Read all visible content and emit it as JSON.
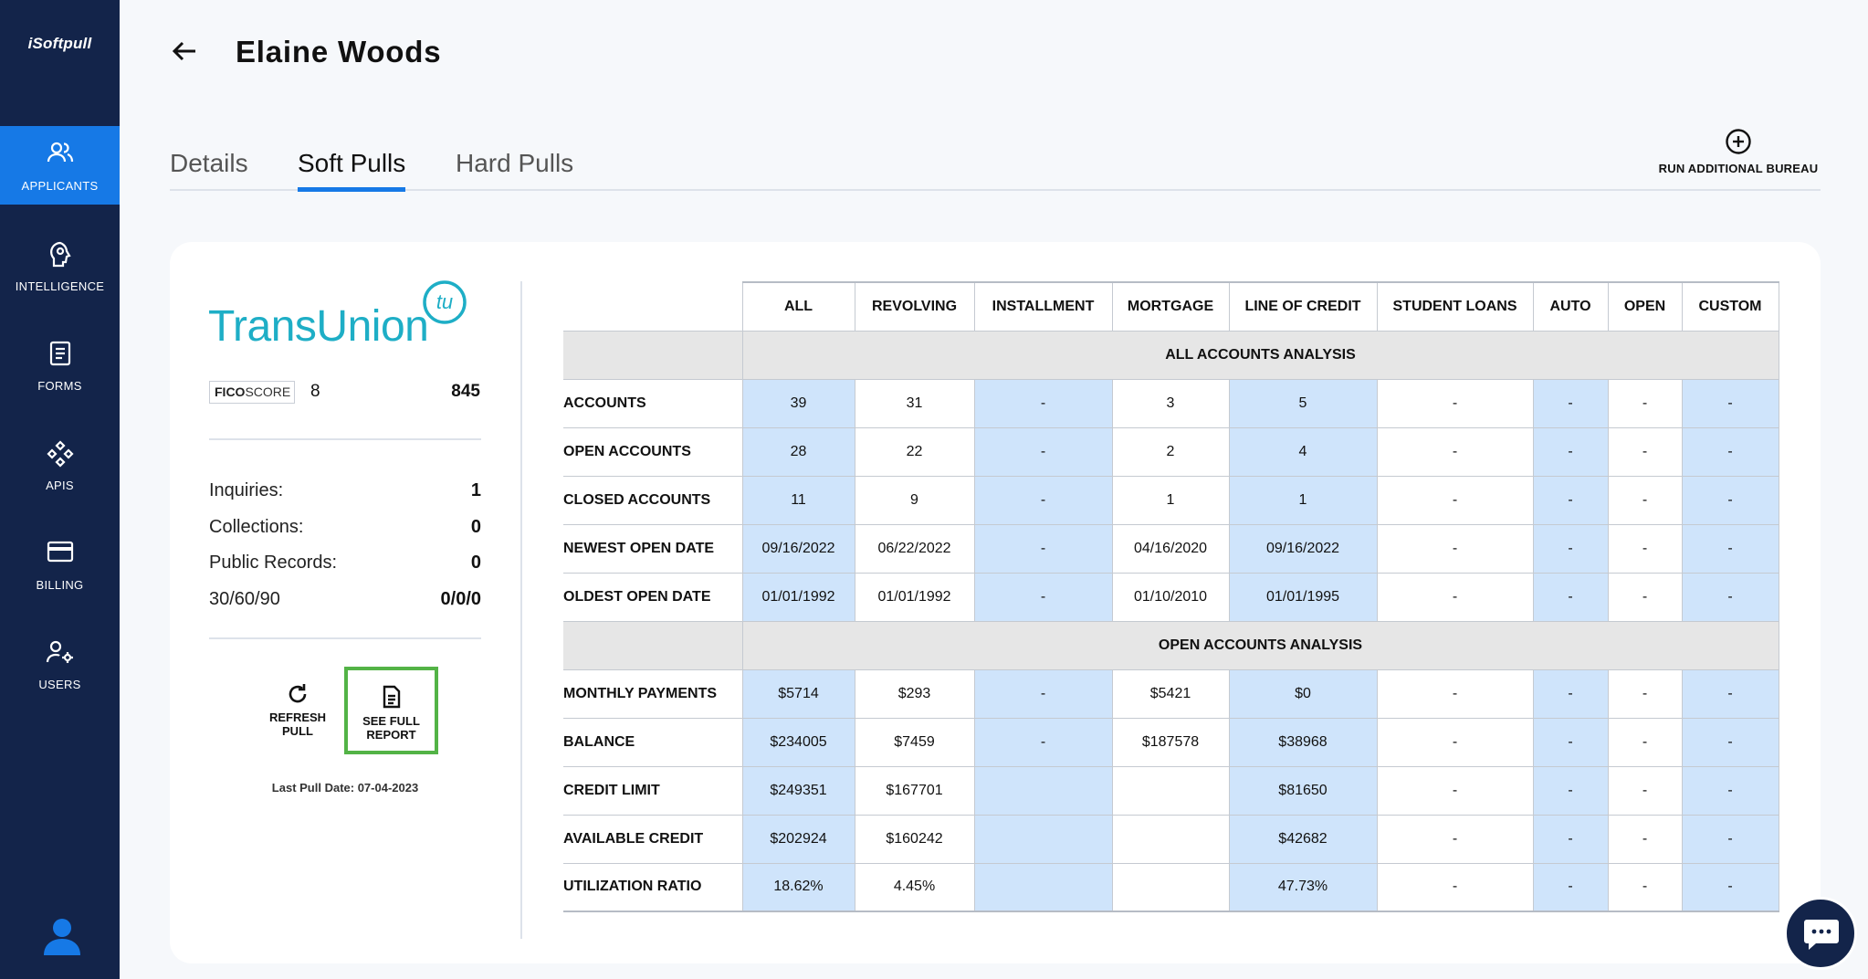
{
  "app": {
    "logo": "iSoftpull"
  },
  "sidebar": {
    "items": [
      {
        "label": "APPLICANTS",
        "icon": "users-icon",
        "active": true
      },
      {
        "label": "INTELLIGENCE",
        "icon": "brain-icon",
        "active": false
      },
      {
        "label": "FORMS",
        "icon": "document-icon",
        "active": false
      },
      {
        "label": "APIS",
        "icon": "api-icon",
        "active": false
      },
      {
        "label": "BILLING",
        "icon": "credit-card-icon",
        "active": false
      },
      {
        "label": "USERS",
        "icon": "user-gear-icon",
        "active": false
      }
    ],
    "active_color": "#1679e6",
    "background": "#13244a"
  },
  "header": {
    "applicant_name": "Elaine Woods"
  },
  "tabs": [
    {
      "label": "Details",
      "active": false
    },
    {
      "label": "Soft Pulls",
      "active": true
    },
    {
      "label": "Hard Pulls",
      "active": false
    }
  ],
  "run_bureau": {
    "label": "RUN ADDITIONAL BUREAU"
  },
  "bureau": {
    "name": "TransUnion",
    "logo_mark": "tu",
    "fico": {
      "badge_bold": "FICO",
      "badge_text": "SCORE",
      "version": "8",
      "score": "845"
    },
    "stats": [
      {
        "label": "Inquiries:",
        "value": "1"
      },
      {
        "label": "Collections:",
        "value": "0"
      },
      {
        "label": "Public Records:",
        "value": "0"
      },
      {
        "label": "30/60/90",
        "value": "0/0/0"
      }
    ],
    "actions": {
      "refresh": "REFRESH PULL",
      "report": "SEE FULL REPORT"
    },
    "last_pull": "Last Pull Date: 07-04-2023"
  },
  "table": {
    "columns": [
      "ALL",
      "REVOLVING",
      "INSTALLMENT",
      "MORTGAGE",
      "LINE OF CREDIT",
      "STUDENT LOANS",
      "AUTO",
      "OPEN",
      "CUSTOM"
    ],
    "sections": [
      {
        "title": "ALL ACCOUNTS ANALYSIS",
        "rows": [
          {
            "label": "ACCOUNTS",
            "values": [
              "39",
              "31",
              "-",
              "3",
              "5",
              "-",
              "-",
              "-",
              "-"
            ]
          },
          {
            "label": "OPEN ACCOUNTS",
            "values": [
              "28",
              "22",
              "-",
              "2",
              "4",
              "-",
              "-",
              "-",
              "-"
            ]
          },
          {
            "label": "CLOSED ACCOUNTS",
            "values": [
              "11",
              "9",
              "-",
              "1",
              "1",
              "-",
              "-",
              "-",
              "-"
            ]
          },
          {
            "label": "NEWEST OPEN DATE",
            "values": [
              "09/16/2022",
              "06/22/2022",
              "-",
              "04/16/2020",
              "09/16/2022",
              "-",
              "-",
              "-",
              "-"
            ]
          },
          {
            "label": "OLDEST OPEN DATE",
            "values": [
              "01/01/1992",
              "01/01/1992",
              "-",
              "01/10/2010",
              "01/01/1995",
              "-",
              "-",
              "-",
              "-"
            ]
          }
        ]
      },
      {
        "title": "OPEN ACCOUNTS ANALYSIS",
        "rows": [
          {
            "label": "MONTHLY PAYMENTS",
            "values": [
              "$5714",
              "$293",
              "-",
              "$5421",
              "$0",
              "-",
              "-",
              "-",
              "-"
            ]
          },
          {
            "label": "BALANCE",
            "values": [
              "$234005",
              "$7459",
              "-",
              "$187578",
              "$38968",
              "-",
              "-",
              "-",
              "-"
            ]
          },
          {
            "label": "CREDIT LIMIT",
            "values": [
              "$249351",
              "$167701",
              "",
              "",
              "$81650",
              "-",
              "-",
              "-",
              "-"
            ]
          },
          {
            "label": "AVAILABLE CREDIT",
            "values": [
              "$202924",
              "$160242",
              "",
              "",
              "$42682",
              "-",
              "-",
              "-",
              "-"
            ]
          },
          {
            "label": "UTILIZATION RATIO",
            "values": [
              "18.62%",
              "4.45%",
              "",
              "",
              "47.73%",
              "-",
              "-",
              "-",
              "-"
            ]
          }
        ]
      }
    ],
    "highlight_color": "#cfe4fb"
  }
}
